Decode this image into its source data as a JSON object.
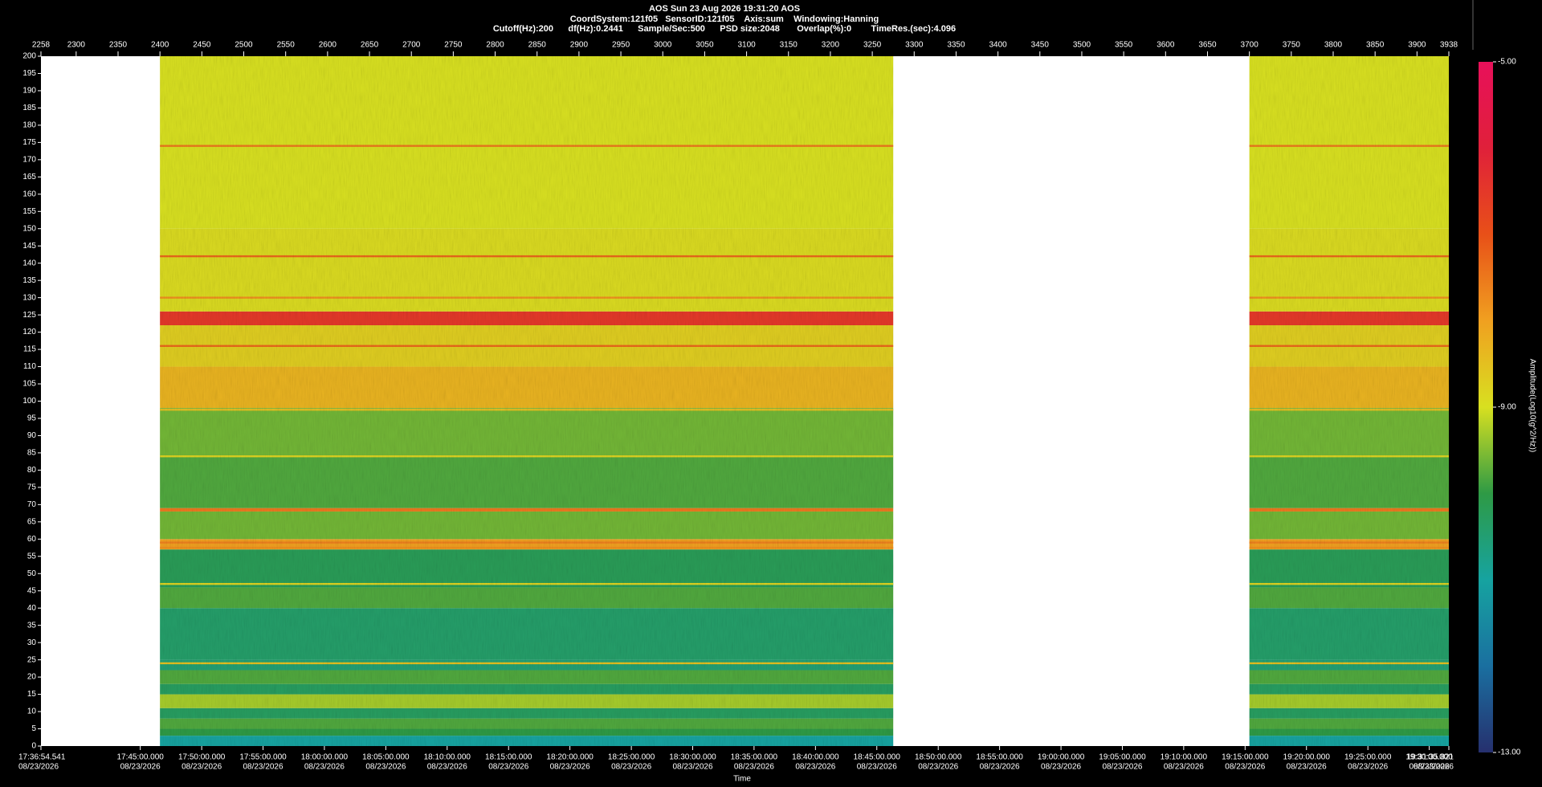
{
  "chart_data": {
    "type": "spectrogram",
    "title": "AOS  Sun 23 Aug 2026 19:31:20  AOS",
    "subtitle": "CoordSystem:121f05   SensorID:121f05    Axis:sum    Windowing:Hanning",
    "info": "Cutoff(Hz):200      df(Hz):0.2441      Sample/Sec:500      PSD size:2048       Overlap(%):0        TimeRes.(sec):4.096",
    "xlabel": "Time",
    "colorbar_label": "Amplitude(Log10(g^2/Hz))",
    "xlim": [
      2258,
      3938
    ],
    "xticks": [
      2258,
      2300,
      2350,
      2400,
      2450,
      2500,
      2550,
      2600,
      2650,
      2700,
      2750,
      2800,
      2850,
      2900,
      2950,
      3000,
      3050,
      3100,
      3150,
      3200,
      3250,
      3300,
      3350,
      3400,
      3450,
      3500,
      3550,
      3600,
      3650,
      3700,
      3750,
      3800,
      3850,
      3900,
      3938
    ],
    "time_ticks": [
      {
        "value": 2258,
        "label": "17:36:54.541",
        "date": "08/23/2026"
      },
      {
        "value": 2376.5,
        "label": "17:45:00.000",
        "date": "08/23/2026"
      },
      {
        "value": 2449.8,
        "label": "17:50:00.000",
        "date": "08/23/2026"
      },
      {
        "value": 2523.0,
        "label": "17:55:00.000",
        "date": "08/23/2026"
      },
      {
        "value": 2596.2,
        "label": "18:00:00.000",
        "date": "08/23/2026"
      },
      {
        "value": 2669.5,
        "label": "18:05:00.000",
        "date": "08/23/2026"
      },
      {
        "value": 2742.7,
        "label": "18:10:00.000",
        "date": "08/23/2026"
      },
      {
        "value": 2816.0,
        "label": "18:15:00.000",
        "date": "08/23/2026"
      },
      {
        "value": 2889.2,
        "label": "18:20:00.000",
        "date": "08/23/2026"
      },
      {
        "value": 2962.5,
        "label": "18:25:00.000",
        "date": "08/23/2026"
      },
      {
        "value": 3035.7,
        "label": "18:30:00.000",
        "date": "08/23/2026"
      },
      {
        "value": 3108.9,
        "label": "18:35:00.000",
        "date": "08/23/2026"
      },
      {
        "value": 3182.2,
        "label": "18:40:00.000",
        "date": "08/23/2026"
      },
      {
        "value": 3255.4,
        "label": "18:45:00.000",
        "date": "08/23/2026"
      },
      {
        "value": 3328.7,
        "label": "18:50:00.000",
        "date": "08/23/2026"
      },
      {
        "value": 3401.9,
        "label": "18:55:00.000",
        "date": "08/23/2026"
      },
      {
        "value": 3475.2,
        "label": "19:00:00.000",
        "date": "08/23/2026"
      },
      {
        "value": 3548.4,
        "label": "19:05:00.000",
        "date": "08/23/2026"
      },
      {
        "value": 3621.6,
        "label": "19:10:00.000",
        "date": "08/23/2026"
      },
      {
        "value": 3694.9,
        "label": "19:15:00.000",
        "date": "08/23/2026"
      },
      {
        "value": 3768.1,
        "label": "19:20:00.000",
        "date": "08/23/2026"
      },
      {
        "value": 3841.4,
        "label": "19:25:00.000",
        "date": "08/23/2026"
      },
      {
        "value": 3914.6,
        "label": "19:30:00.000",
        "date": "08/23/2026"
      },
      {
        "value": 3938,
        "label": "19:31:35.821",
        "date": "08/23/2026"
      }
    ],
    "ylim": [
      0,
      200
    ],
    "yticks": [
      0,
      5,
      10,
      15,
      20,
      25,
      30,
      35,
      40,
      45,
      50,
      55,
      60,
      65,
      70,
      75,
      80,
      85,
      90,
      95,
      100,
      105,
      110,
      115,
      120,
      125,
      130,
      135,
      140,
      145,
      150,
      155,
      160,
      165,
      170,
      175,
      180,
      185,
      190,
      195,
      200
    ],
    "segments": [
      [
        2400,
        3275
      ],
      [
        3700,
        3938
      ]
    ],
    "freqs": [
      0,
      3,
      5,
      8,
      11,
      15,
      18,
      22,
      25,
      40,
      46,
      57,
      60,
      68,
      69,
      84,
      98,
      110,
      122,
      126,
      150,
      200
    ],
    "levels": [
      -11.0,
      -10.0,
      -9.8,
      -10.3,
      -9.3,
      -10.3,
      -9.8,
      -10.5,
      -10.4,
      -9.8,
      -10.2,
      -8.0,
      -9.6,
      -7.5,
      -9.8,
      -9.6,
      -8.3,
      -8.7,
      -6.5,
      -8.9,
      -9.0
    ],
    "lines": {
      "freqs": [
        174,
        142,
        130,
        116,
        97.5,
        84,
        59,
        57.5,
        47,
        24
      ],
      "levels": [
        -7.5,
        -7.3,
        -7.8,
        -7.3,
        -8.5,
        -8.8,
        -7.6,
        -7.8,
        -8.8,
        -8.5
      ]
    },
    "clim": [
      -13,
      -5
    ],
    "cticks": [
      {
        "value": -5,
        "label": "-5.00"
      },
      {
        "value": -9,
        "label": "-9.00"
      },
      {
        "value": -13,
        "label": "-13.00"
      }
    ],
    "colors": [
      "#26306e",
      "#1a6fa0",
      "#16a3a0",
      "#2e9a45",
      "#d8e020",
      "#f0a020",
      "#e85018",
      "#e0203a",
      "#e8105a"
    ]
  }
}
